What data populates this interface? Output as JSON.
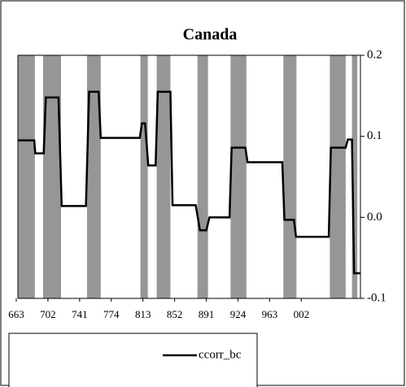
{
  "chart_data": {
    "type": "line",
    "title": "Canada",
    "x": [
      1,
      8.5,
      9,
      13,
      14,
      20,
      21.5,
      33,
      34.5,
      39,
      40,
      58.5,
      59.5,
      61,
      62.5,
      66,
      67,
      73,
      74,
      85,
      87,
      90,
      91.5,
      101,
      102,
      108.5,
      109.5,
      126,
      127,
      131.5,
      132.5,
      148,
      149,
      156,
      157,
      159,
      160,
      163
    ],
    "series": [
      {
        "name": "ccorr_bc",
        "color": "#000000",
        "values": [
          0.095,
          0.095,
          0.079,
          0.079,
          0.148,
          0.148,
          0.014,
          0.014,
          0.155,
          0.155,
          0.098,
          0.098,
          0.116,
          0.116,
          0.064,
          0.064,
          0.155,
          0.155,
          0.015,
          0.015,
          -0.016,
          -0.016,
          0,
          0,
          0.086,
          0.086,
          0.068,
          0.068,
          -0.003,
          -0.003,
          -0.024,
          -0.024,
          0.086,
          0.086,
          0.096,
          0.096,
          -0.069,
          -0.069
        ]
      }
    ],
    "shaded_regions": [
      [
        1,
        8.8
      ],
      [
        12.7,
        21.2
      ],
      [
        33.5,
        40
      ],
      [
        58.8,
        62.3
      ],
      [
        66.5,
        73
      ],
      [
        85.8,
        90.8
      ],
      [
        101.5,
        109
      ],
      [
        126.5,
        132.7
      ],
      [
        148.5,
        156
      ],
      [
        159,
        161.5
      ]
    ],
    "shade_color": "#969696",
    "xlim": [
      0,
      163
    ],
    "xticks": [
      {
        "value": 0,
        "label": "663"
      },
      {
        "value": 15,
        "label": "702"
      },
      {
        "value": 30,
        "label": "741"
      },
      {
        "value": 45,
        "label": "774"
      },
      {
        "value": 60,
        "label": "813"
      },
      {
        "value": 75,
        "label": "852"
      },
      {
        "value": 90,
        "label": "891"
      },
      {
        "value": 105,
        "label": "924"
      },
      {
        "value": 120,
        "label": "963"
      },
      {
        "value": 135,
        "label": "002"
      }
    ],
    "ylim": [
      -0.1,
      0.2
    ],
    "yticks": [
      0.2,
      0.1,
      {
        "value": 0,
        "label": "0.0"
      },
      -0.1
    ]
  }
}
